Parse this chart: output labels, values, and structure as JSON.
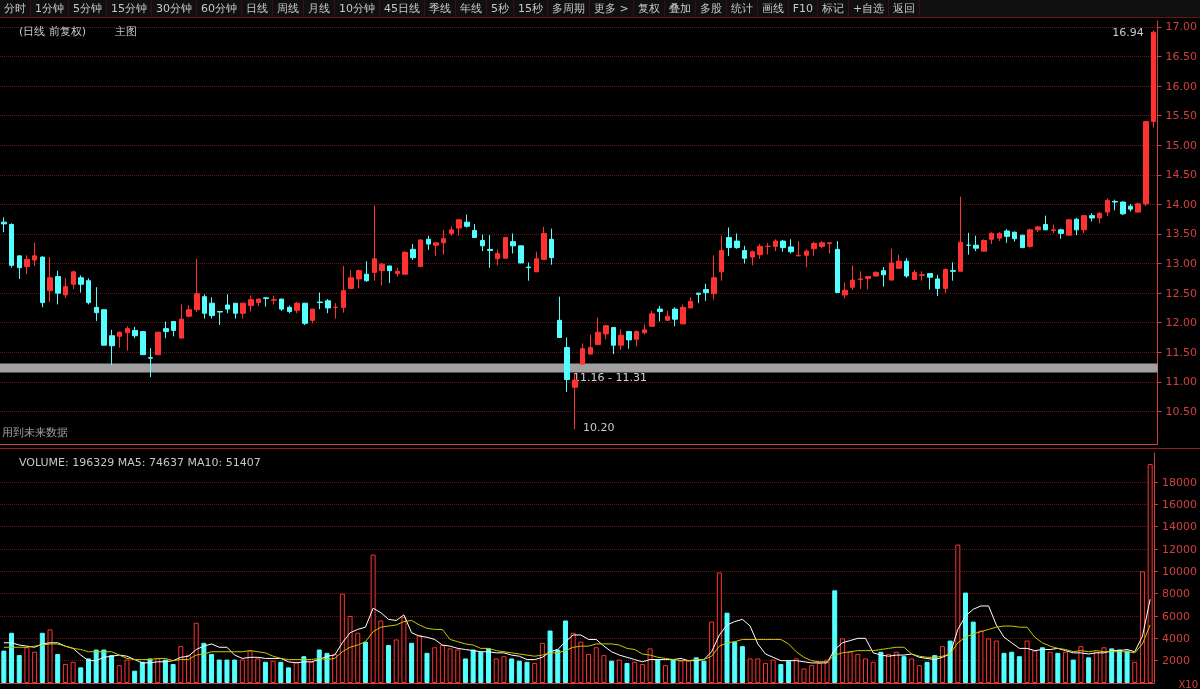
{
  "chart_data": [
    {
      "type": "candlestick",
      "title": "(日线 前复权)",
      "subtitle": "主图",
      "categories": [
        null,
        null,
        null,
        null,
        null,
        null,
        null,
        null,
        null,
        null,
        null,
        null,
        null,
        null,
        null,
        null,
        null,
        null,
        null,
        null,
        null,
        null,
        null,
        null,
        null,
        null,
        null,
        null,
        null,
        null,
        null,
        null,
        null,
        null,
        null,
        null,
        null,
        null,
        null,
        null,
        null,
        null,
        null,
        null,
        null,
        null,
        null,
        null,
        null,
        null,
        null,
        null,
        null,
        null,
        null,
        null,
        null,
        null,
        null,
        null,
        null,
        null,
        null,
        null,
        null,
        null,
        null,
        null,
        null,
        null,
        null,
        null,
        null,
        null,
        null,
        null,
        null,
        null,
        null,
        null,
        null,
        null,
        null,
        null,
        null,
        null,
        null,
        null,
        null,
        null,
        null,
        null,
        null,
        null,
        null,
        null,
        null,
        null,
        null,
        null,
        null,
        null,
        null,
        null,
        null,
        null,
        null,
        null,
        null,
        null,
        null,
        null,
        null,
        null,
        null,
        null,
        null,
        null,
        null,
        null,
        null,
        null,
        null,
        null,
        null,
        null,
        null,
        null,
        null,
        null,
        null,
        null,
        null,
        null,
        null,
        null,
        null,
        null,
        null,
        null,
        null,
        null,
        null,
        null,
        null,
        null,
        null,
        null,
        null,
        null
      ],
      "ohlc": [
        [
          13.7,
          13.78,
          13.53,
          13.67
        ],
        [
          13.66,
          13.68,
          12.93,
          12.97
        ],
        [
          13.13,
          13.13,
          12.74,
          12.93
        ],
        [
          12.95,
          13.14,
          12.82,
          13.07
        ],
        [
          13.06,
          13.35,
          12.96,
          13.13
        ],
        [
          13.11,
          13.12,
          12.26,
          12.34
        ],
        [
          12.54,
          13.11,
          12.35,
          12.76
        ],
        [
          12.78,
          12.88,
          12.31,
          12.5
        ],
        [
          12.47,
          12.75,
          12.42,
          12.61
        ],
        [
          12.65,
          12.88,
          12.57,
          12.86
        ],
        [
          12.76,
          12.8,
          12.51,
          12.65
        ],
        [
          12.71,
          12.75,
          12.31,
          12.34
        ],
        [
          12.26,
          12.6,
          12.03,
          12.17
        ],
        [
          12.22,
          12.22,
          11.62,
          11.62
        ],
        [
          11.78,
          11.88,
          11.28,
          11.61
        ],
        [
          11.77,
          11.85,
          11.58,
          11.84
        ],
        [
          11.83,
          11.94,
          11.53,
          11.9
        ],
        [
          11.87,
          11.93,
          11.74,
          11.78
        ],
        [
          11.85,
          11.85,
          11.46,
          11.46
        ],
        [
          11.41,
          11.57,
          11.08,
          11.4
        ],
        [
          11.46,
          11.84,
          11.46,
          11.84
        ],
        [
          11.9,
          12.02,
          11.74,
          11.85
        ],
        [
          12.02,
          12.03,
          11.77,
          11.87
        ],
        [
          11.74,
          12.31,
          11.74,
          12.06
        ],
        [
          12.11,
          12.3,
          12.09,
          12.22
        ],
        [
          12.22,
          13.08,
          12.18,
          12.49
        ],
        [
          12.44,
          12.48,
          12.07,
          12.16
        ],
        [
          12.33,
          12.43,
          12.07,
          12.12
        ],
        [
          12.19,
          12.19,
          11.96,
          12.18
        ],
        [
          12.3,
          12.48,
          12.16,
          12.23
        ],
        [
          12.33,
          12.33,
          12.07,
          12.16
        ],
        [
          12.16,
          12.34,
          12.07,
          12.33
        ],
        [
          12.29,
          12.46,
          12.19,
          12.39
        ],
        [
          12.34,
          12.4,
          12.28,
          12.4
        ],
        [
          12.42,
          12.43,
          12.27,
          12.41
        ],
        [
          12.38,
          12.46,
          12.31,
          12.39
        ],
        [
          12.4,
          12.4,
          12.2,
          12.23
        ],
        [
          12.26,
          12.29,
          12.16,
          12.19
        ],
        [
          12.21,
          12.35,
          12.16,
          12.33
        ],
        [
          12.33,
          12.33,
          11.96,
          11.99
        ],
        [
          12.04,
          12.23,
          11.99,
          12.23
        ],
        [
          12.35,
          12.51,
          12.23,
          12.34
        ],
        [
          12.37,
          12.4,
          12.16,
          12.25
        ],
        [
          12.26,
          12.33,
          12.07,
          12.26
        ],
        [
          12.26,
          12.96,
          12.17,
          12.54
        ],
        [
          12.58,
          12.89,
          12.57,
          12.76
        ],
        [
          12.74,
          12.9,
          12.58,
          12.88
        ],
        [
          12.82,
          13.04,
          12.69,
          12.71
        ],
        [
          12.85,
          13.98,
          12.71,
          13.08
        ],
        [
          12.88,
          13.01,
          12.63,
          12.99
        ],
        [
          12.96,
          12.96,
          12.67,
          12.88
        ],
        [
          12.83,
          12.93,
          12.78,
          12.87
        ],
        [
          12.82,
          13.21,
          12.82,
          13.19
        ],
        [
          13.24,
          13.33,
          13.06,
          13.1
        ],
        [
          12.95,
          13.4,
          12.95,
          13.4
        ],
        [
          13.41,
          13.47,
          13.23,
          13.33
        ],
        [
          13.31,
          13.35,
          13.13,
          13.35
        ],
        [
          13.35,
          13.57,
          13.15,
          13.42
        ],
        [
          13.51,
          13.63,
          13.47,
          13.57
        ],
        [
          13.6,
          13.75,
          13.47,
          13.74
        ],
        [
          13.7,
          13.83,
          13.61,
          13.63
        ],
        [
          13.56,
          13.67,
          13.44,
          13.44
        ],
        [
          13.39,
          13.49,
          13.21,
          13.3
        ],
        [
          13.24,
          13.48,
          12.93,
          13.22
        ],
        [
          13.08,
          13.24,
          12.97,
          13.17
        ],
        [
          13.09,
          13.45,
          13.09,
          13.44
        ],
        [
          13.37,
          13.51,
          13.17,
          13.3
        ],
        [
          13.3,
          13.3,
          13.01,
          13.01
        ],
        [
          12.94,
          13.02,
          12.71,
          12.93
        ],
        [
          12.86,
          13.2,
          12.86,
          13.08
        ],
        [
          13.07,
          13.62,
          13.07,
          13.51
        ],
        [
          13.41,
          13.59,
          12.98,
          13.1
        ],
        [
          12.04,
          12.44,
          11.75,
          11.75
        ],
        [
          11.58,
          11.75,
          10.83,
          11.04
        ],
        [
          10.91,
          11.15,
          10.2,
          11.03
        ],
        [
          11.3,
          11.65,
          11.3,
          11.56
        ],
        [
          11.47,
          11.8,
          11.47,
          11.58
        ],
        [
          11.63,
          12.09,
          11.63,
          11.84
        ],
        [
          11.81,
          11.96,
          11.72,
          11.95
        ],
        [
          11.92,
          11.92,
          11.47,
          11.62
        ],
        [
          11.62,
          11.89,
          11.54,
          11.79
        ],
        [
          11.85,
          11.85,
          11.56,
          11.71
        ],
        [
          11.72,
          11.87,
          11.6,
          11.85
        ],
        [
          11.83,
          11.97,
          11.8,
          11.88
        ],
        [
          11.94,
          12.2,
          11.94,
          12.15
        ],
        [
          12.23,
          12.28,
          12.02,
          12.19
        ],
        [
          12.04,
          12.2,
          12.04,
          12.11
        ],
        [
          12.23,
          12.26,
          11.94,
          12.06
        ],
        [
          11.98,
          12.31,
          11.98,
          12.26
        ],
        [
          12.25,
          12.43,
          12.25,
          12.36
        ],
        [
          12.5,
          12.5,
          12.33,
          12.48
        ],
        [
          12.56,
          12.66,
          12.37,
          12.51
        ],
        [
          12.49,
          13.14,
          12.39,
          12.76
        ],
        [
          12.86,
          13.47,
          12.71,
          13.22
        ],
        [
          13.44,
          13.61,
          13.13,
          13.27
        ],
        [
          13.38,
          13.51,
          13.25,
          13.27
        ],
        [
          13.22,
          13.3,
          13.0,
          13.09
        ],
        [
          13.11,
          13.22,
          12.97,
          13.2
        ],
        [
          13.15,
          13.33,
          13.08,
          13.29
        ],
        [
          13.29,
          13.35,
          13.15,
          13.29
        ],
        [
          13.29,
          13.41,
          13.21,
          13.38
        ],
        [
          13.38,
          13.4,
          13.2,
          13.27
        ],
        [
          13.28,
          13.41,
          13.17,
          13.2
        ],
        [
          13.13,
          13.38,
          13.13,
          13.14
        ],
        [
          13.14,
          13.24,
          12.94,
          13.21
        ],
        [
          13.25,
          13.37,
          13.13,
          13.34
        ],
        [
          13.29,
          13.38,
          13.26,
          13.35
        ],
        [
          13.34,
          13.36,
          13.17,
          13.35
        ],
        [
          13.24,
          13.38,
          12.51,
          12.51
        ],
        [
          12.47,
          12.68,
          12.41,
          12.55
        ],
        [
          12.6,
          12.97,
          12.55,
          12.72
        ],
        [
          12.73,
          12.87,
          12.57,
          12.74
        ],
        [
          12.75,
          12.78,
          12.56,
          12.78
        ],
        [
          12.79,
          12.87,
          12.78,
          12.85
        ],
        [
          12.88,
          12.94,
          12.61,
          12.81
        ],
        [
          12.72,
          13.25,
          12.72,
          13.01
        ],
        [
          12.92,
          13.15,
          12.92,
          13.04
        ],
        [
          13.04,
          13.09,
          12.76,
          12.79
        ],
        [
          12.73,
          12.89,
          12.73,
          12.85
        ],
        [
          12.8,
          12.87,
          12.71,
          12.81
        ],
        [
          12.83,
          12.83,
          12.56,
          12.77
        ],
        [
          12.74,
          12.81,
          12.45,
          12.58
        ],
        [
          12.58,
          12.92,
          12.5,
          12.9
        ],
        [
          12.88,
          13.02,
          12.71,
          12.87
        ],
        [
          12.87,
          14.13,
          12.87,
          13.36
        ],
        [
          13.31,
          13.52,
          13.15,
          13.31
        ],
        [
          13.31,
          13.47,
          13.21,
          13.26
        ],
        [
          13.21,
          13.41,
          13.21,
          13.39
        ],
        [
          13.41,
          13.53,
          13.33,
          13.51
        ],
        [
          13.43,
          13.53,
          13.38,
          13.51
        ],
        [
          13.55,
          13.58,
          13.35,
          13.46
        ],
        [
          13.53,
          13.54,
          13.37,
          13.42
        ],
        [
          13.48,
          13.48,
          13.26,
          13.27
        ],
        [
          13.29,
          13.59,
          13.27,
          13.57
        ],
        [
          13.57,
          13.64,
          13.53,
          13.62
        ],
        [
          13.66,
          13.81,
          13.57,
          13.57
        ],
        [
          13.56,
          13.66,
          13.51,
          13.57
        ],
        [
          13.57,
          13.59,
          13.42,
          13.51
        ],
        [
          13.48,
          13.75,
          13.47,
          13.74
        ],
        [
          13.75,
          13.77,
          13.48,
          13.57
        ],
        [
          13.57,
          13.82,
          13.51,
          13.81
        ],
        [
          13.81,
          13.85,
          13.71,
          13.77
        ],
        [
          13.77,
          13.87,
          13.68,
          13.85
        ],
        [
          13.87,
          14.1,
          13.8,
          14.07
        ],
        [
          14.05,
          14.08,
          13.9,
          14.04
        ],
        [
          14.04,
          14.05,
          13.82,
          13.84
        ],
        [
          13.97,
          14.01,
          13.88,
          13.92
        ],
        [
          13.87,
          14.03,
          13.87,
          14.01
        ],
        [
          14.01,
          15.41,
          13.97,
          15.4
        ],
        [
          15.4,
          16.94,
          15.3,
          16.91
        ]
      ],
      "colors": [
        "#54ffff",
        "#54ffff",
        "#54ffff",
        "#ff3232",
        "#ff3232",
        "#54ffff",
        "#ff3232",
        "#54ffff",
        "#ff3232",
        "#ff3232",
        "#54ffff",
        "#54ffff",
        "#54ffff",
        "#54ffff",
        "#54ffff",
        "#ff3232",
        "#ff3232",
        "#54ffff",
        "#54ffff",
        "#54ffff",
        "#ff3232",
        "#54ffff",
        "#54ffff",
        "#ff3232",
        "#ff3232",
        "#ff3232",
        "#54ffff",
        "#54ffff",
        "#54ffff",
        "#54ffff",
        "#54ffff",
        "#ff3232",
        "#ff3232",
        "#ff3232",
        "#54ffff",
        "#ff3232",
        "#54ffff",
        "#54ffff",
        "#ff3232",
        "#54ffff",
        "#ff3232",
        "#54ffff",
        "#54ffff",
        "#ff3232",
        "#ff3232",
        "#ff3232",
        "#ff3232",
        "#54ffff",
        "#ff3232",
        "#ff3232",
        "#54ffff",
        "#ff3232",
        "#ff3232",
        "#54ffff",
        "#ff3232",
        "#54ffff",
        "#ff3232",
        "#ff3232",
        "#ff3232",
        "#ff3232",
        "#54ffff",
        "#54ffff",
        "#54ffff",
        "#54ffff",
        "#ff3232",
        "#ff3232",
        "#54ffff",
        "#54ffff",
        "#54ffff",
        "#ff3232",
        "#ff3232",
        "#54ffff",
        "#54ffff",
        "#54ffff",
        "#ff3232",
        "#ff3232",
        "#ff3232",
        "#ff3232",
        "#ff3232",
        "#54ffff",
        "#ff3232",
        "#54ffff",
        "#ff3232",
        "#ff3232",
        "#ff3232",
        "#54ffff",
        "#ff3232",
        "#54ffff",
        "#ff3232",
        "#ff3232",
        "#54ffff",
        "#54ffff",
        "#ff3232",
        "#ff3232",
        "#54ffff",
        "#54ffff",
        "#54ffff",
        "#ff3232",
        "#ff3232",
        "#ff3232",
        "#ff3232",
        "#54ffff",
        "#54ffff",
        "#ff3232",
        "#ff3232",
        "#ff3232",
        "#ff3232",
        "#ff3232",
        "#54ffff",
        "#ff3232",
        "#ff3232",
        "#ff3232",
        "#ff3232",
        "#ff3232",
        "#54ffff",
        "#ff3232",
        "#ff3232",
        "#54ffff",
        "#ff3232",
        "#ff3232",
        "#54ffff",
        "#54ffff",
        "#ff3232",
        "#54ffff",
        "#ff3232",
        "#54ffff",
        "#54ffff",
        "#ff3232",
        "#ff3232",
        "#ff3232",
        "#54ffff",
        "#54ffff",
        "#54ffff",
        "#ff3232",
        "#ff3232",
        "#54ffff",
        "#ff3232",
        "#54ffff",
        "#ff3232",
        "#54ffff",
        "#ff3232",
        "#54ffff",
        "#ff3232",
        "#ff3232",
        "#54ffff",
        "#54ffff",
        "#54ffff",
        "#ff3232",
        "#ff3232",
        "#ff3232"
      ],
      "ylim": [
        9.95,
        17.1
      ],
      "yticks": [
        {
          "value": 10.5,
          "label": "10.50"
        },
        {
          "value": 11,
          "label": "11.00"
        },
        {
          "value": 11.5,
          "label": "11.50"
        },
        {
          "value": 12,
          "label": "12.00"
        },
        {
          "value": 12.5,
          "label": "12.50"
        },
        {
          "value": 13,
          "label": "13.00"
        },
        {
          "value": 13.5,
          "label": "13.50"
        },
        {
          "value": 14,
          "label": "14.00"
        },
        {
          "value": 14.5,
          "label": "14.50"
        },
        {
          "value": 15,
          "label": "15.00"
        },
        {
          "value": 15.5,
          "label": "15.50"
        },
        {
          "value": 16,
          "label": "16.00"
        },
        {
          "value": 16.5,
          "label": "16.50"
        },
        {
          "value": 17,
          "label": "17.00"
        }
      ],
      "grid": "y",
      "tick_labels": "y",
      "bands": [
        {
          "axis": "y",
          "from": 11.16,
          "to": 11.31,
          "label": "11.16 - 11.31",
          "color": "#a0a0a0"
        }
      ],
      "annotations": [
        "分时",
        "1分钟",
        "5分钟",
        "15分钟",
        "30分钟",
        "60分钟",
        "日线",
        "周线",
        "月线",
        "10分钟",
        "45日线",
        "季线",
        "年线",
        "5秒",
        "15秒",
        "多周期",
        "更多 >",
        "复权",
        "叠加",
        "多股",
        "统计",
        "画线",
        "F10",
        "标记",
        "+自选",
        "返回",
        "用到未来数据",
        "16.94",
        "10.20"
      ]
    },
    {
      "type": "bar",
      "title": "VOLUME: 196329 MA5: 74637 MA10: 51407",
      "categories": [
        null,
        null,
        null,
        null,
        null,
        null,
        null,
        null,
        null,
        null,
        null,
        null,
        null,
        null,
        null,
        null,
        null,
        null,
        null,
        null,
        null,
        null,
        null,
        null,
        null,
        null,
        null,
        null,
        null,
        null,
        null,
        null,
        null,
        null,
        null,
        null,
        null,
        null,
        null,
        null,
        null,
        null,
        null,
        null,
        null,
        null,
        null,
        null,
        null,
        null,
        null,
        null,
        null,
        null,
        null,
        null,
        null,
        null,
        null,
        null,
        null,
        null,
        null,
        null,
        null,
        null,
        null,
        null,
        null,
        null,
        null,
        null,
        null,
        null,
        null,
        null,
        null,
        null,
        null,
        null,
        null,
        null,
        null,
        null,
        null,
        null,
        null,
        null,
        null,
        null,
        null,
        null,
        null,
        null,
        null,
        null,
        null,
        null,
        null,
        null,
        null,
        null,
        null,
        null,
        null,
        null,
        null,
        null,
        null,
        null,
        null,
        null,
        null,
        null,
        null,
        null,
        null,
        null,
        null,
        null,
        null,
        null,
        null,
        null,
        null,
        null,
        null,
        null,
        null,
        null,
        null,
        null,
        null,
        null,
        null,
        null,
        null,
        null,
        null,
        null,
        null,
        null,
        null,
        null,
        null,
        null,
        null,
        null,
        null,
        null
      ],
      "series": [
        {
          "type": "bar",
          "values": [
            2900,
            4500,
            2500,
            3200,
            2800,
            4500,
            4800,
            2600,
            1700,
            1900,
            1400,
            2200,
            3000,
            3000,
            2500,
            1600,
            2100,
            1100,
            1900,
            2200,
            2200,
            2100,
            1700,
            3300,
            2500,
            5400,
            3600,
            2600,
            2100,
            2100,
            2100,
            2100,
            2900,
            2200,
            1900,
            2000,
            1900,
            1400,
            1900,
            2400,
            1900,
            3000,
            2700,
            2600,
            8000,
            6000,
            4500,
            3700,
            11500,
            5600,
            3400,
            3900,
            5900,
            3600,
            4300,
            2700,
            3200,
            3400,
            3100,
            3000,
            2200,
            3000,
            2800,
            3100,
            2200,
            2400,
            2200,
            2000,
            1900,
            1800,
            3600,
            4700,
            3000,
            5600,
            4500,
            3700,
            2600,
            3200,
            2500,
            2000,
            2100,
            1800,
            1900,
            1700,
            3100,
            2100,
            1600,
            2100,
            2000,
            2000,
            2300,
            2000,
            5500,
            9900,
            6300,
            3700,
            3300,
            2200,
            2200,
            1800,
            2100,
            1700,
            2000,
            2200,
            1300,
            1600,
            1800,
            2100,
            8300,
            4000,
            2800,
            2600,
            2200,
            1900,
            2800,
            2600,
            2800,
            2400,
            2200,
            1600,
            1900,
            2500,
            3300,
            3800,
            12400,
            8100,
            5500,
            4700,
            4000,
            3800,
            2700,
            2800,
            2400,
            3800,
            2900,
            3200,
            2800,
            2700,
            2800,
            2100,
            3300,
            2300,
            2800,
            3200,
            3100,
            3000,
            2900,
            1900,
            10000,
            19600
          ],
          "colors": [
            "#54ffff",
            "#54ffff",
            "#54ffff",
            "#ff3232",
            "#ff3232",
            "#54ffff",
            "#ff3232",
            "#54ffff",
            "#ff3232",
            "#ff3232",
            "#54ffff",
            "#54ffff",
            "#54ffff",
            "#54ffff",
            "#54ffff",
            "#ff3232",
            "#ff3232",
            "#54ffff",
            "#54ffff",
            "#54ffff",
            "#ff3232",
            "#54ffff",
            "#54ffff",
            "#ff3232",
            "#ff3232",
            "#ff3232",
            "#54ffff",
            "#54ffff",
            "#54ffff",
            "#54ffff",
            "#54ffff",
            "#ff3232",
            "#ff3232",
            "#ff3232",
            "#54ffff",
            "#ff3232",
            "#54ffff",
            "#54ffff",
            "#ff3232",
            "#54ffff",
            "#ff3232",
            "#54ffff",
            "#54ffff",
            "#ff3232",
            "#ff3232",
            "#ff3232",
            "#ff3232",
            "#54ffff",
            "#ff3232",
            "#ff3232",
            "#54ffff",
            "#ff3232",
            "#ff3232",
            "#54ffff",
            "#ff3232",
            "#54ffff",
            "#ff3232",
            "#ff3232",
            "#ff3232",
            "#ff3232",
            "#54ffff",
            "#54ffff",
            "#54ffff",
            "#54ffff",
            "#ff3232",
            "#ff3232",
            "#54ffff",
            "#54ffff",
            "#54ffff",
            "#ff3232",
            "#ff3232",
            "#54ffff",
            "#54ffff",
            "#54ffff",
            "#ff3232",
            "#ff3232",
            "#ff3232",
            "#ff3232",
            "#ff3232",
            "#54ffff",
            "#ff3232",
            "#54ffff",
            "#ff3232",
            "#ff3232",
            "#ff3232",
            "#54ffff",
            "#ff3232",
            "#54ffff",
            "#ff3232",
            "#ff3232",
            "#54ffff",
            "#54ffff",
            "#ff3232",
            "#ff3232",
            "#54ffff",
            "#54ffff",
            "#54ffff",
            "#ff3232",
            "#ff3232",
            "#ff3232",
            "#ff3232",
            "#54ffff",
            "#54ffff",
            "#ff3232",
            "#ff3232",
            "#ff3232",
            "#ff3232",
            "#ff3232",
            "#54ffff",
            "#ff3232",
            "#ff3232",
            "#ff3232",
            "#ff3232",
            "#ff3232",
            "#54ffff",
            "#ff3232",
            "#ff3232",
            "#54ffff",
            "#ff3232",
            "#ff3232",
            "#54ffff",
            "#54ffff",
            "#ff3232",
            "#54ffff",
            "#ff3232",
            "#54ffff",
            "#54ffff",
            "#ff3232",
            "#ff3232",
            "#ff3232",
            "#54ffff",
            "#54ffff",
            "#54ffff",
            "#ff3232",
            "#ff3232",
            "#54ffff",
            "#ff3232",
            "#54ffff",
            "#ff3232",
            "#54ffff",
            "#ff3232",
            "#54ffff",
            "#ff3232",
            "#ff3232",
            "#54ffff",
            "#54ffff",
            "#54ffff",
            "#ff3232",
            "#ff3232",
            "#ff3232"
          ]
        },
        {
          "type": "line",
          "color": "#ffffff",
          "values": [
            3600,
            3600,
            3400,
            3300,
            3200,
            3500,
            3600,
            3600,
            3300,
            3100,
            2500,
            2000,
            2000,
            2300,
            2400,
            2500,
            2400,
            2100,
            1800,
            1800,
            1900,
            1900,
            2000,
            2300,
            2400,
            3000,
            3300,
            3500,
            3200,
            3200,
            2500,
            2200,
            2300,
            2300,
            2200,
            2200,
            2200,
            1900,
            1800,
            1900,
            1900,
            2100,
            2400,
            2500,
            3600,
            4500,
            4800,
            5000,
            6700,
            6300,
            5700,
            5600,
            6100,
            4500,
            4200,
            4100,
            3900,
            3400,
            3300,
            3100,
            3000,
            2900,
            2800,
            2800,
            2700,
            2700,
            2500,
            2400,
            2100,
            2100,
            2300,
            2800,
            3000,
            3700,
            4300,
            4300,
            3900,
            3900,
            3300,
            2800,
            2500,
            2300,
            2100,
            1900,
            2100,
            2100,
            2100,
            2100,
            2200,
            2000,
            2000,
            2100,
            2800,
            4300,
            5200,
            5500,
            5700,
            5100,
            3500,
            2600,
            2300,
            2000,
            2000,
            2000,
            1900,
            1800,
            1800,
            1800,
            3000,
            3600,
            3800,
            4000,
            4000,
            2700,
            2500,
            2400,
            2500,
            2500,
            2600,
            2300,
            2200,
            2100,
            2300,
            2600,
            4800,
            6000,
            6600,
            6900,
            6900,
            5200,
            4100,
            3600,
            3100,
            3100,
            2900,
            3000,
            3000,
            3100,
            2900,
            2700,
            2700,
            2600,
            2700,
            2700,
            2900,
            2900,
            3000,
            2800,
            4200,
            7500
          ]
        },
        {
          "type": "line",
          "color": "#c8c800",
          "values": [
            3200,
            3200,
            3200,
            3200,
            3300,
            3400,
            3500,
            3500,
            3300,
            3100,
            3000,
            2800,
            2800,
            2800,
            2800,
            2500,
            2200,
            2100,
            2100,
            2100,
            2200,
            2200,
            2000,
            2100,
            2100,
            2500,
            2600,
            2800,
            2800,
            2800,
            2800,
            2800,
            2900,
            2800,
            2700,
            2400,
            2200,
            2100,
            2100,
            2100,
            2100,
            2200,
            2100,
            2200,
            2800,
            3200,
            3400,
            3700,
            4600,
            5000,
            5100,
            5200,
            5500,
            5600,
            5200,
            4900,
            4800,
            4800,
            3900,
            3700,
            3500,
            3400,
            3100,
            3100,
            2900,
            2800,
            2700,
            2600,
            2500,
            2400,
            2500,
            2700,
            2700,
            2900,
            3200,
            3300,
            3300,
            3500,
            3500,
            3500,
            3400,
            3100,
            3000,
            2600,
            2500,
            2300,
            2200,
            2100,
            2000,
            2000,
            2100,
            2100,
            2400,
            3300,
            3600,
            3700,
            3900,
            3900,
            3900,
            3900,
            3900,
            3900,
            3500,
            2800,
            2300,
            2000,
            1900,
            1900,
            2500,
            2700,
            2800,
            2900,
            2900,
            2900,
            3000,
            3100,
            3200,
            3200,
            2600,
            2400,
            2300,
            2300,
            2400,
            2600,
            3600,
            4100,
            4400,
            4600,
            4800,
            5000,
            5100,
            5100,
            5000,
            5000,
            4100,
            3600,
            3300,
            3100,
            3000,
            2800,
            2900,
            2800,
            2900,
            2800,
            2800,
            2800,
            2800,
            2700,
            3500,
            5200
          ]
        }
      ],
      "ylim": [
        0,
        20600
      ],
      "yticks": [
        2000,
        4000,
        6000,
        8000,
        10000,
        12000,
        14000,
        16000,
        18000
      ],
      "grid": "y",
      "tick_labels": "y",
      "marker": "none",
      "annotations": [
        "X10"
      ]
    }
  ]
}
